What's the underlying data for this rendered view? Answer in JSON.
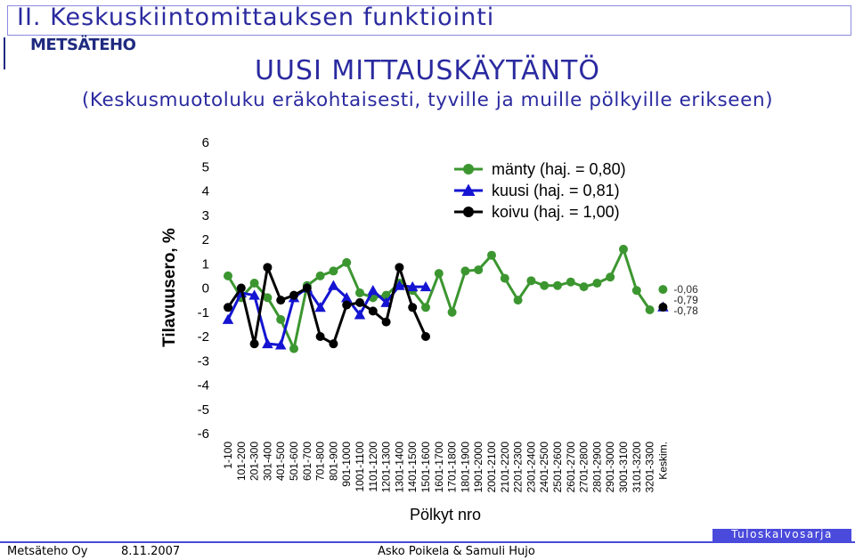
{
  "page": {
    "title": "II. Keskuskiintomittauksen funktiointi",
    "logo_text": "METSÄTEHO",
    "heading": "UUSI MITTAUSKÄYTÄNTÖ",
    "subheading": "(Keskusmuotoluku eräkohtaisesti, tyville ja muille pölkyille erikseen)",
    "footer_org": "Metsäteho Oy",
    "footer_date": "8.11.2007",
    "footer_authors": "Asko Poikela & Samuli Hujo",
    "footer_series": "Tuloskalvosarja",
    "colors": {
      "accent": "#2a2aa0",
      "footer_bar": "#4a4adc"
    },
    "icons": [
      "metsateho-logo-icon"
    ]
  },
  "chart_data": {
    "type": "line",
    "title": "",
    "xlabel": "Pölkyt nro",
    "ylabel": "Tilavuusero, %",
    "ylim": [
      -6,
      6
    ],
    "yticks": [
      6,
      5,
      4,
      3,
      2,
      1,
      0,
      -1,
      -2,
      -3,
      -4,
      -5,
      -6
    ],
    "grid": false,
    "legend_position": "top-right",
    "categories": [
      "1-100",
      "101-200",
      "201-300",
      "301-400",
      "401-500",
      "501-600",
      "601-700",
      "701-800",
      "801-900",
      "901-1000",
      "1001-1100",
      "1101-1200",
      "1201-1300",
      "1301-1400",
      "1401-1500",
      "1501-1600",
      "1601-1700",
      "1701-1800",
      "1801-1900",
      "1901-2000",
      "2001-2100",
      "2101-2200",
      "2201-2300",
      "2301-2400",
      "2401-2500",
      "2501-2600",
      "2601-2700",
      "2701-2800",
      "2801-2900",
      "2901-3000",
      "3001-3100",
      "3101-3200",
      "3201-3300",
      "Keskim."
    ],
    "series": [
      {
        "name": "mänty (haj. = 0,80)",
        "color": "#3c9630",
        "marker": "circle",
        "values": [
          0.5,
          -0.4,
          0.2,
          -0.4,
          -1.3,
          -2.5,
          0.1,
          0.5,
          0.7,
          1.05,
          -0.2,
          -0.4,
          -0.3,
          0.2,
          -0.1,
          -0.8,
          0.6,
          -1.0,
          0.7,
          0.75,
          1.35,
          0.4,
          -0.5,
          0.3,
          0.1,
          0.1,
          0.25,
          0.05,
          0.2,
          0.45,
          1.6,
          -0.1,
          -0.9,
          null
        ],
        "summary": {
          "value": -0.06,
          "label": "-0,06"
        }
      },
      {
        "name": "kuusi (haj. = 0,81)",
        "color": "#1414d2",
        "marker": "triangle",
        "values": [
          -1.3,
          -0.2,
          -0.3,
          -2.3,
          -2.35,
          -0.4,
          0.0,
          -0.8,
          0.1,
          -0.4,
          -1.1,
          -0.1,
          -0.6,
          0.1,
          0.05,
          0.05,
          null,
          null,
          null,
          null,
          null,
          null,
          null,
          null,
          null,
          null,
          null,
          null,
          null,
          null,
          null,
          null,
          null,
          null
        ],
        "summary": {
          "value": -0.78,
          "label": "-0,78"
        }
      },
      {
        "name": "koivu (haj. = 1,00)",
        "color": "#000000",
        "marker": "circle",
        "values": [
          -0.8,
          0.0,
          -2.3,
          0.85,
          -0.5,
          -0.3,
          0.0,
          -2.0,
          -2.3,
          -0.7,
          -0.6,
          -0.95,
          -1.4,
          0.85,
          -0.8,
          -2.0,
          null,
          null,
          null,
          null,
          null,
          null,
          null,
          null,
          null,
          null,
          null,
          null,
          null,
          null,
          null,
          null,
          null,
          null
        ],
        "summary": {
          "value": -0.79,
          "label": "-0,79"
        }
      }
    ]
  }
}
